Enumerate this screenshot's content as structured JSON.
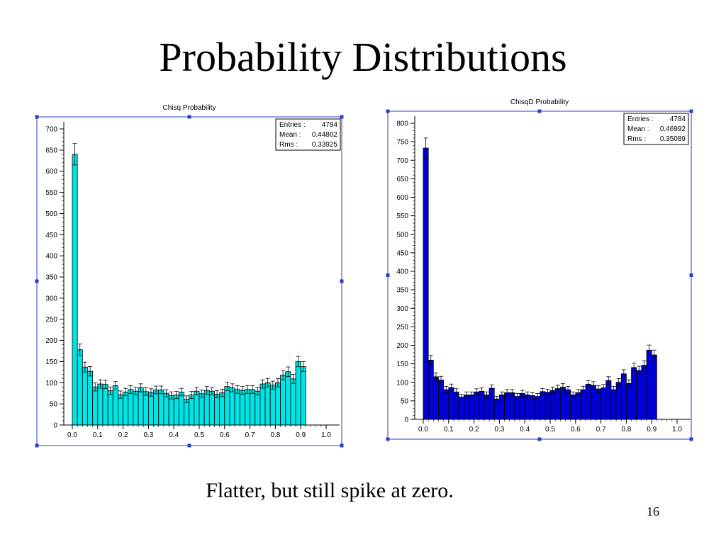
{
  "slide": {
    "title": "Probability Distributions",
    "caption": "Flatter, but still spike at zero.",
    "number": "16"
  },
  "chart_data": [
    {
      "type": "bar",
      "title": "Chisq Probability",
      "bar_color": "#00e5e5",
      "frame_color": "#2a3fc8",
      "xlim": [
        0,
        1
      ],
      "ylim": [
        0,
        700
      ],
      "xticks": [
        "0.0",
        "0.1",
        "0.2",
        "0.3",
        "0.4",
        "0.5",
        "0.6",
        "0.7",
        "0.8",
        "0.9",
        "1.0"
      ],
      "yticks": [
        "0",
        "50",
        "100",
        "150",
        "200",
        "250",
        "300",
        "350",
        "400",
        "450",
        "500",
        "550",
        "600",
        "650",
        "700"
      ],
      "grid": false,
      "stats": {
        "entries_label": "Entries :",
        "entries": "4784",
        "mean_label": "Mean :",
        "mean": "0.44802",
        "rms_label": "Rms :",
        "rms": "0.33925"
      },
      "bin_width": 0.02,
      "values": [
        640,
        178,
        137,
        127,
        90,
        97,
        96,
        81,
        93,
        72,
        78,
        84,
        80,
        88,
        79,
        77,
        83,
        83,
        75,
        70,
        71,
        78,
        61,
        71,
        80,
        74,
        82,
        80,
        73,
        76,
        91,
        88,
        84,
        82,
        84,
        84,
        80,
        97,
        100,
        94,
        100,
        118,
        126,
        109,
        150,
        138
      ]
    },
    {
      "type": "bar",
      "title": "ChisqD Probability",
      "bar_color": "#0000dd",
      "frame_color": "#2a3fc8",
      "xlim": [
        0,
        1
      ],
      "ylim": [
        0,
        800
      ],
      "xticks": [
        "0.0",
        "0.1",
        "0.2",
        "0.3",
        "0.4",
        "0.5",
        "0.6",
        "0.7",
        "0.8",
        "0.9",
        "1.0"
      ],
      "yticks": [
        "0",
        "50",
        "100",
        "150",
        "200",
        "250",
        "300",
        "350",
        "400",
        "450",
        "500",
        "550",
        "600",
        "650",
        "700",
        "750",
        "800"
      ],
      "grid": false,
      "stats": {
        "entries_label": "Entries :",
        "entries": "4784",
        "mean_label": "Mean :",
        "mean": "0.46992",
        "rms_label": "Rms :",
        "rms": "0.35089"
      },
      "bin_width": 0.02,
      "values": [
        733,
        160,
        115,
        106,
        80,
        86,
        74,
        60,
        66,
        66,
        74,
        76,
        66,
        84,
        55,
        66,
        72,
        72,
        62,
        70,
        66,
        64,
        62,
        75,
        73,
        78,
        83,
        87,
        80,
        66,
        72,
        80,
        95,
        92,
        82,
        85,
        105,
        80,
        100,
        123,
        97,
        140,
        132,
        146,
        187,
        174
      ]
    }
  ]
}
